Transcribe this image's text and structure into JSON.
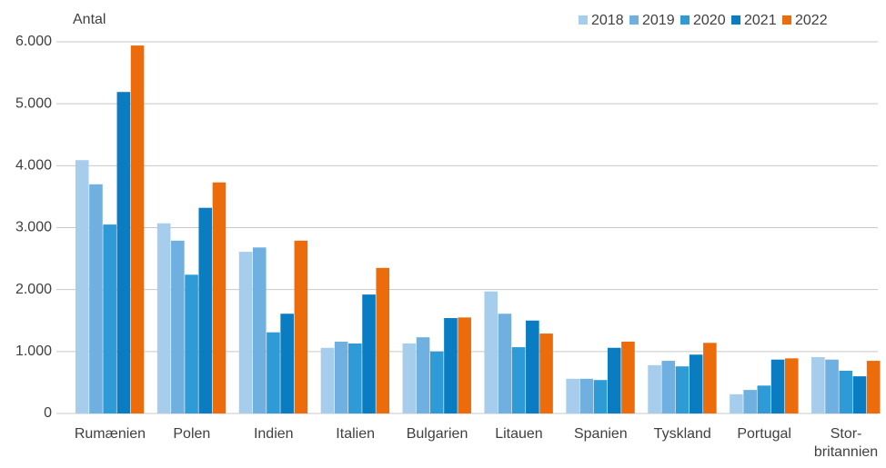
{
  "chart_data": {
    "type": "bar",
    "y_label": "Antal",
    "categories": [
      "Rumænien",
      "Polen",
      "Indien",
      "Italien",
      "Bulgarien",
      "Litauen",
      "Spanien",
      "Tyskland",
      "Portugal",
      "Stor-\nbritannien"
    ],
    "series": [
      {
        "name": "2018",
        "color": "#a6cdec",
        "values": [
          4090,
          3070,
          2610,
          1060,
          1130,
          1970,
          560,
          780,
          310,
          910
        ]
      },
      {
        "name": "2019",
        "color": "#6fb0e0",
        "values": [
          3700,
          2790,
          2680,
          1160,
          1230,
          1610,
          560,
          850,
          380,
          870
        ]
      },
      {
        "name": "2020",
        "color": "#2e9ad6",
        "values": [
          3050,
          2240,
          1310,
          1130,
          1000,
          1070,
          540,
          760,
          450,
          690
        ]
      },
      {
        "name": "2021",
        "color": "#0a7cc2",
        "values": [
          5190,
          3320,
          1610,
          1920,
          1540,
          1500,
          1060,
          950,
          870,
          600
        ]
      },
      {
        "name": "2022",
        "color": "#ec6c0c",
        "values": [
          5940,
          3730,
          2790,
          2350,
          1550,
          1290,
          1160,
          1140,
          890,
          850
        ]
      }
    ],
    "ylim": [
      0,
      6000
    ],
    "yticks": [
      0,
      {
        "value": 1000,
        "label": "1.000"
      },
      {
        "value": 2000,
        "label": "2.000"
      },
      {
        "value": 3000,
        "label": "3.000"
      },
      {
        "value": 4000,
        "label": "4.000"
      },
      {
        "value": 5000,
        "label": "5.000"
      },
      {
        "value": 6000,
        "label": "6.000"
      }
    ],
    "grid": true,
    "legend": "top-right"
  }
}
